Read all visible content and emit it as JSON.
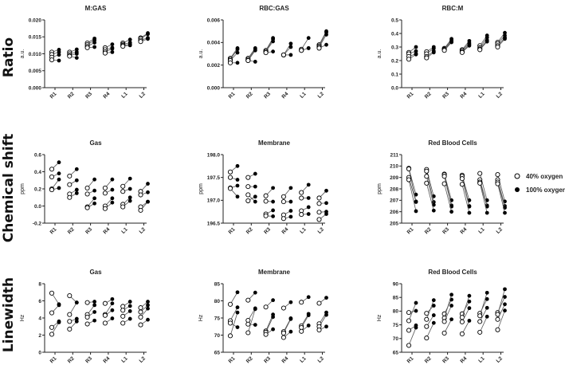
{
  "row_labels": [
    "Ratio",
    "Chemical shift",
    "Linewidth"
  ],
  "legend": [
    {
      "label": "40% oxygen",
      "marker": "open-circle"
    },
    {
      "label": "100% oxygen",
      "marker": "filled-circle"
    }
  ],
  "colors": {
    "marker": "#000000",
    "line": "#555555",
    "axis": "#222222"
  },
  "chart_data": [
    {
      "type": "scatter",
      "title": "M:GAS",
      "ylabel": "a.u.",
      "ylim": [
        0,
        0.02
      ],
      "yticks": [
        "0.000",
        "0.005",
        "0.010",
        "0.015",
        "0.020"
      ],
      "categories": [
        "R1",
        "R2",
        "R3",
        "R4",
        "L1",
        "L2"
      ],
      "pairs": [
        [
          [
            0.0105,
            0.0112
          ],
          [
            0.0098,
            0.0105
          ],
          [
            0.009,
            0.0097
          ],
          [
            0.0082,
            0.008
          ]
        ],
        [
          [
            0.0105,
            0.0113
          ],
          [
            0.01,
            0.0105
          ],
          [
            0.0095,
            0.01
          ],
          [
            0.0093,
            0.0088
          ]
        ],
        [
          [
            0.0132,
            0.0145
          ],
          [
            0.0127,
            0.014
          ],
          [
            0.0122,
            0.0133
          ],
          [
            0.0118,
            0.012
          ]
        ],
        [
          [
            0.0118,
            0.0128
          ],
          [
            0.0112,
            0.0118
          ],
          [
            0.0106,
            0.0115
          ],
          [
            0.0102,
            0.0105
          ]
        ],
        [
          [
            0.0132,
            0.0142
          ],
          [
            0.0128,
            0.0133
          ],
          [
            0.0125,
            0.0128
          ],
          [
            0.0122,
            0.0125
          ]
        ],
        [
          [
            0.0147,
            0.0161
          ],
          [
            0.0145,
            0.0158
          ],
          [
            0.014,
            0.0147
          ],
          [
            0.0136,
            0.0144
          ]
        ]
      ]
    },
    {
      "type": "scatter",
      "title": "RBC:GAS",
      "ylabel": "a.u.",
      "ylim": [
        0,
        0.006
      ],
      "yticks": [
        "0.000",
        "0.002",
        "0.004",
        "0.006"
      ],
      "categories": [
        "R1",
        "R2",
        "R3",
        "R4",
        "L1",
        "L2"
      ],
      "pairs": [
        [
          [
            0.0026,
            0.0035
          ],
          [
            0.0025,
            0.0034
          ],
          [
            0.0024,
            0.0031
          ],
          [
            0.0022,
            0.0022
          ]
        ],
        [
          [
            0.0026,
            0.0035
          ],
          [
            0.0025,
            0.0034
          ],
          [
            0.0024,
            0.0033
          ],
          [
            0.0024,
            0.0023
          ]
        ],
        [
          [
            0.0033,
            0.0044
          ],
          [
            0.0032,
            0.0043
          ],
          [
            0.0032,
            0.0041
          ],
          [
            0.0031,
            0.0032
          ]
        ],
        [
          [
            0.0029,
            0.0039
          ],
          [
            0.0029,
            0.0036
          ],
          [
            0.0029,
            0.0029
          ]
        ],
        [
          [
            0.0034,
            0.0044
          ],
          [
            0.0033,
            0.0035
          ],
          [
            0.0033,
            0.0035
          ]
        ],
        [
          [
            0.0038,
            0.005
          ],
          [
            0.0037,
            0.0049
          ],
          [
            0.0036,
            0.0047
          ],
          [
            0.0035,
            0.0038
          ]
        ]
      ]
    },
    {
      "type": "scatter",
      "title": "RBC:M",
      "ylabel": "a.u.",
      "ylim": [
        0,
        0.5
      ],
      "yticks": [
        "0.0",
        "0.1",
        "0.2",
        "0.3",
        "0.4",
        "0.5"
      ],
      "categories": [
        "R1",
        "R2",
        "R3",
        "R4",
        "L1",
        "L2"
      ],
      "pairs": [
        [
          [
            0.26,
            0.3
          ],
          [
            0.25,
            0.27
          ],
          [
            0.23,
            0.25
          ],
          [
            0.21,
            0.245
          ]
        ],
        [
          [
            0.265,
            0.3
          ],
          [
            0.25,
            0.29
          ],
          [
            0.23,
            0.27
          ],
          [
            0.22,
            0.26
          ]
        ],
        [
          [
            0.29,
            0.36
          ],
          [
            0.285,
            0.35
          ],
          [
            0.28,
            0.34
          ],
          [
            0.275,
            0.335
          ]
        ],
        [
          [
            0.28,
            0.345
          ],
          [
            0.275,
            0.33
          ],
          [
            0.265,
            0.32
          ],
          [
            0.26,
            0.31
          ]
        ],
        [
          [
            0.31,
            0.385
          ],
          [
            0.295,
            0.37
          ],
          [
            0.285,
            0.35
          ],
          [
            0.28,
            0.34
          ]
        ],
        [
          [
            0.335,
            0.405
          ],
          [
            0.325,
            0.385
          ],
          [
            0.31,
            0.37
          ],
          [
            0.3,
            0.36
          ]
        ]
      ]
    },
    {
      "type": "scatter",
      "title": "Gas",
      "ylabel": "ppm",
      "ylim": [
        -0.2,
        0.6
      ],
      "yticks": [
        "-0.2",
        "0.0",
        "0.2",
        "0.4",
        "0.6"
      ],
      "categories": [
        "R1",
        "R2",
        "R3",
        "R4",
        "L1",
        "L2"
      ],
      "pairs": [
        [
          [
            0.43,
            0.51
          ],
          [
            0.34,
            0.38
          ],
          [
            0.2,
            0.31
          ],
          [
            0.19,
            0.21
          ]
        ],
        [
          [
            0.35,
            0.43
          ],
          [
            0.25,
            0.3
          ],
          [
            0.14,
            0.19
          ],
          [
            0.1,
            0.15
          ]
        ],
        [
          [
            0.21,
            0.31
          ],
          [
            0.14,
            0.18
          ],
          [
            -0.01,
            0.09
          ],
          [
            -0.02,
            0.03
          ]
        ],
        [
          [
            0.21,
            0.31
          ],
          [
            0.15,
            0.19
          ],
          [
            0.0,
            0.09
          ],
          [
            -0.03,
            0.04
          ]
        ],
        [
          [
            0.23,
            0.32
          ],
          [
            0.17,
            0.2
          ],
          [
            0.02,
            0.1
          ],
          [
            -0.01,
            0.06
          ]
        ],
        [
          [
            0.17,
            0.26
          ],
          [
            0.13,
            0.16
          ],
          [
            -0.01,
            0.05
          ],
          [
            -0.05,
            0.05
          ]
        ]
      ]
    },
    {
      "type": "scatter",
      "title": "Membrane",
      "ylabel": "ppm",
      "ylim": [
        196.5,
        198.0
      ],
      "yticks": [
        "196.5",
        "197.0",
        "197.5",
        "198.0"
      ],
      "categories": [
        "R1",
        "R2",
        "R3",
        "R4",
        "L1",
        "L2"
      ],
      "pairs": [
        [
          [
            197.62,
            197.75
          ],
          [
            197.5,
            197.45
          ],
          [
            197.27,
            197.32
          ],
          [
            197.26,
            197.08
          ]
        ],
        [
          [
            197.5,
            197.58
          ],
          [
            197.3,
            197.3
          ],
          [
            197.12,
            196.97
          ],
          [
            196.99,
            197.08
          ]
        ],
        [
          [
            197.1,
            197.27
          ],
          [
            196.98,
            196.97
          ],
          [
            196.7,
            196.78
          ],
          [
            196.66,
            196.65
          ]
        ],
        [
          [
            197.08,
            197.27
          ],
          [
            196.97,
            196.97
          ],
          [
            196.68,
            196.77
          ],
          [
            196.6,
            196.64
          ]
        ],
        [
          [
            197.17,
            197.34
          ],
          [
            197.05,
            197.05
          ],
          [
            196.77,
            196.85
          ],
          [
            196.69,
            196.7
          ]
        ],
        [
          [
            197.05,
            197.21
          ],
          [
            196.93,
            196.94
          ],
          [
            196.74,
            196.75
          ],
          [
            196.58,
            196.7
          ]
        ]
      ]
    },
    {
      "type": "scatter",
      "title": "Red Blood Cells",
      "ylabel": "ppm",
      "ylim": [
        205,
        211
      ],
      "yticks": [
        "205",
        "206",
        "207",
        "208",
        "209",
        "210",
        "211"
      ],
      "categories": [
        "R1",
        "R2",
        "R3",
        "R4",
        "L1",
        "L2"
      ],
      "pairs": [
        [
          [
            209.8,
            207.5
          ],
          [
            209.75,
            206.9
          ],
          [
            209.0,
            206.85
          ],
          [
            208.8,
            206.05
          ]
        ],
        [
          [
            209.7,
            207.35
          ],
          [
            209.55,
            206.85
          ],
          [
            209.1,
            206.6
          ],
          [
            208.5,
            206.1
          ]
        ],
        [
          [
            209.3,
            207.0
          ],
          [
            209.25,
            206.55
          ],
          [
            209.1,
            206.45
          ],
          [
            208.45,
            206.0
          ]
        ],
        [
          [
            209.2,
            207.0
          ],
          [
            209.1,
            206.5
          ],
          [
            208.9,
            206.45
          ],
          [
            208.4,
            205.9
          ]
        ],
        [
          [
            209.35,
            207.0
          ],
          [
            208.8,
            206.55
          ],
          [
            208.6,
            206.45
          ],
          [
            208.5,
            205.9
          ]
        ],
        [
          [
            209.25,
            206.9
          ],
          [
            208.8,
            206.5
          ],
          [
            208.6,
            206.35
          ],
          [
            208.45,
            205.9
          ]
        ]
      ]
    },
    {
      "type": "scatter",
      "title": "Gas",
      "ylabel": "Hz",
      "ylim": [
        0,
        8
      ],
      "yticks": [
        "0",
        "2",
        "4",
        "6",
        "8"
      ],
      "categories": [
        "R1",
        "R2",
        "R3",
        "R4",
        "L1",
        "L2"
      ],
      "pairs": [
        [
          [
            6.9,
            5.6
          ],
          [
            4.6,
            5.5
          ],
          [
            2.9,
            3.6
          ],
          [
            2.1,
            3.5
          ]
        ],
        [
          [
            6.6,
            5.8
          ],
          [
            4.4,
            5.8
          ],
          [
            3.6,
            3.9
          ],
          [
            2.7,
            3.6
          ]
        ],
        [
          [
            5.8,
            5.9
          ],
          [
            4.4,
            5.5
          ],
          [
            4.1,
            4.7
          ],
          [
            3.3,
            3.7
          ]
        ],
        [
          [
            5.7,
            6.2
          ],
          [
            4.4,
            5.7
          ],
          [
            4.3,
            4.9
          ],
          [
            3.4,
            3.95
          ]
        ],
        [
          [
            5.35,
            5.9
          ],
          [
            4.9,
            5.4
          ],
          [
            4.2,
            4.8
          ],
          [
            3.4,
            3.9
          ]
        ],
        [
          [
            5.2,
            5.9
          ],
          [
            4.7,
            5.5
          ],
          [
            4.1,
            5.1
          ],
          [
            3.2,
            3.8
          ]
        ]
      ]
    },
    {
      "type": "scatter",
      "title": "Membrane",
      "ylabel": "Hz",
      "ylim": [
        65,
        85
      ],
      "yticks": [
        "65",
        "70",
        "75",
        "80",
        "85"
      ],
      "categories": [
        "R1",
        "R2",
        "R3",
        "R4",
        "L1",
        "L2"
      ],
      "pairs": [
        [
          [
            79.0,
            82.5
          ],
          [
            74.2,
            78.1
          ],
          [
            73.5,
            72.3
          ],
          [
            69.8,
            76.6
          ]
        ],
        [
          [
            80.2,
            82.4
          ],
          [
            74.3,
            77.8
          ],
          [
            73.2,
            73.0
          ],
          [
            70.7,
            77.6
          ]
        ],
        [
          [
            78.2,
            80.2
          ],
          [
            71.2,
            76.0
          ],
          [
            70.8,
            75.3
          ],
          [
            70.2,
            71.7
          ]
        ],
        [
          [
            77.9,
            79.6
          ],
          [
            71.0,
            74.9
          ],
          [
            70.6,
            74.7
          ],
          [
            69.3,
            71.0
          ]
        ],
        [
          [
            79.6,
            81.1
          ],
          [
            72.7,
            76.2
          ],
          [
            72.2,
            75.8
          ],
          [
            71.1,
            72.8
          ]
        ],
        [
          [
            79.3,
            80.9
          ],
          [
            73.3,
            76.6
          ],
          [
            72.5,
            75.9
          ],
          [
            71.5,
            72.5
          ]
        ]
      ]
    },
    {
      "type": "scatter",
      "title": "Red Blood Cells",
      "ylabel": "Hz",
      "ylim": [
        65,
        90
      ],
      "yticks": [
        "65",
        "70",
        "75",
        "80",
        "85",
        "90"
      ],
      "categories": [
        "R1",
        "R2",
        "R3",
        "R4",
        "L1",
        "L2"
      ],
      "pairs": [
        [
          [
            79.5,
            80.1
          ],
          [
            76.5,
            83.0
          ],
          [
            73.0,
            74.8
          ],
          [
            67.5,
            74.0
          ]
        ],
        [
          [
            79.2,
            82.0
          ],
          [
            77.0,
            84.0
          ],
          [
            74.4,
            78.5
          ],
          [
            70.2,
            75.7
          ]
        ],
        [
          [
            79.0,
            84.2
          ],
          [
            77.5,
            86.0
          ],
          [
            76.2,
            82.0
          ],
          [
            72.0,
            77.0
          ]
        ],
        [
          [
            79.0,
            83.5
          ],
          [
            77.7,
            85.6
          ],
          [
            76.1,
            81.1
          ],
          [
            71.7,
            76.5
          ]
        ],
        [
          [
            79.2,
            84.4
          ],
          [
            78.3,
            86.7
          ],
          [
            76.2,
            81.2
          ],
          [
            72.3,
            78.0
          ]
        ],
        [
          [
            79.5,
            85.2
          ],
          [
            78.8,
            88.0
          ],
          [
            77.0,
            82.5
          ],
          [
            73.2,
            80.2
          ]
        ]
      ]
    }
  ]
}
